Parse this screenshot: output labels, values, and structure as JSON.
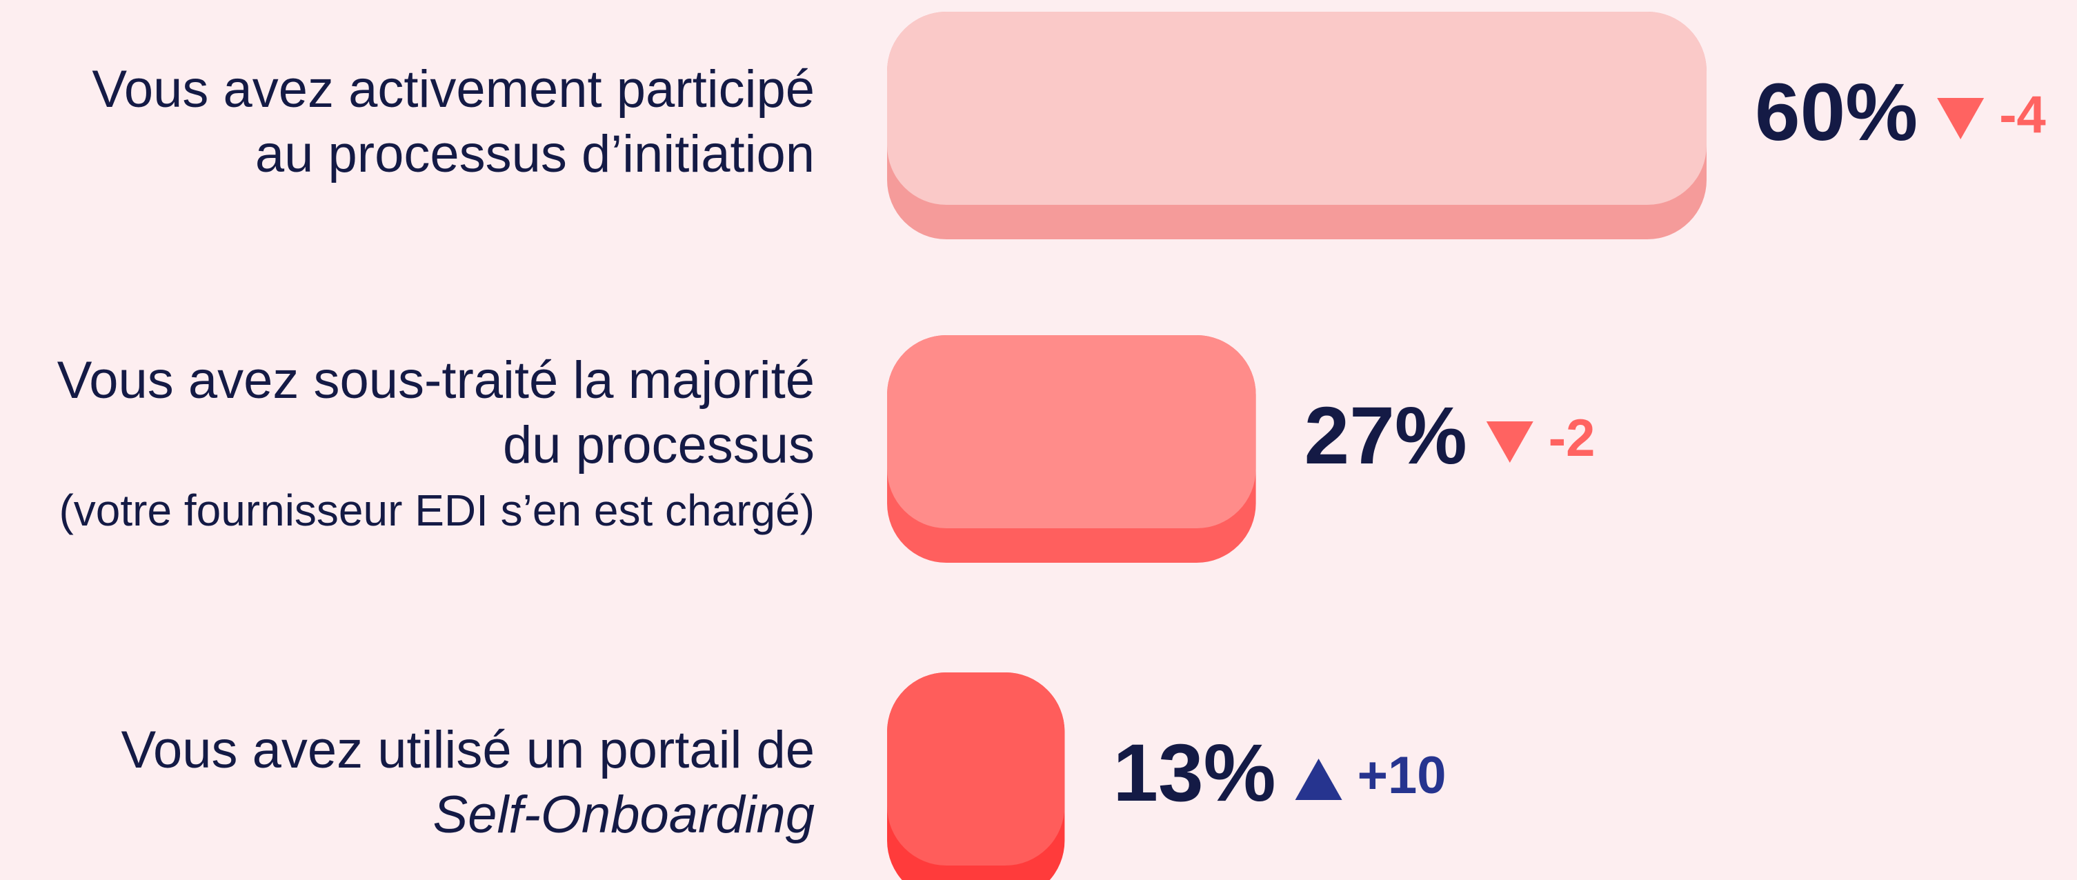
{
  "chart_data": {
    "type": "bar",
    "orientation": "horizontal",
    "categories": [
      [
        {
          "text": "Vous avez activement participé"
        },
        {
          "text": "au processus d’initiation"
        }
      ],
      [
        {
          "text": "Vous avez sous-traité la majorité"
        },
        {
          "text": "du processus "
        },
        {
          "text": "(votre fournisseur EDI s’en est chargé)",
          "small": true
        }
      ],
      [
        {
          "text": "Vous avez utilisé un portail de"
        },
        {
          "text": "Self-Onboarding",
          "italic": true
        }
      ]
    ],
    "values": [
      60,
      27,
      13
    ],
    "value_labels": [
      "60%",
      "27%",
      "13%"
    ],
    "changes": [
      -4,
      -2,
      10
    ],
    "change_labels": [
      "-4",
      "-2",
      "+10"
    ],
    "colors": [
      "#fac9c8",
      "#ff8c8a",
      "#ff5d5b"
    ],
    "edge_colors": [
      "#f59b9a",
      "#ff5f5e",
      "#ff3b3b"
    ],
    "down_color": "#ff6361",
    "up_color": "#26348f",
    "xlim": [
      0,
      100
    ]
  }
}
